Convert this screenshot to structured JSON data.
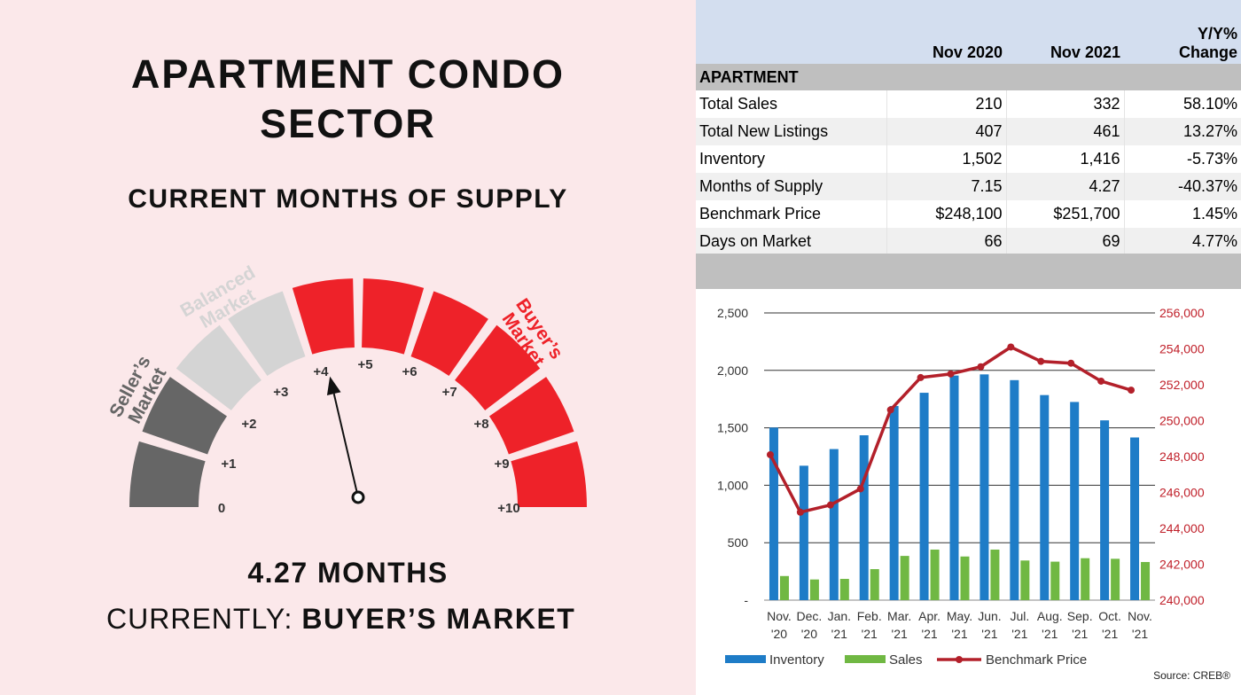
{
  "left_panel": {
    "title_line1": "APARTMENT CONDO",
    "title_line2": "SECTOR",
    "subtitle": "CURRENT MONTHS OF SUPPLY",
    "months_text": "4.27 MONTHS",
    "currently_label": "CURRENTLY:",
    "currently_value": "BUYER’S MARKET",
    "gauge": {
      "value": 4.27,
      "max": 10,
      "ticks": [
        "0",
        "+1",
        "+2",
        "+3",
        "+4",
        "+5",
        "+6",
        "+7",
        "+8",
        "+9",
        "+10"
      ],
      "zones": [
        {
          "label_line1": "Seller’s",
          "label_line2": "Market",
          "color": "#666666",
          "from": 0,
          "to": 2
        },
        {
          "label_line1": "Balanced",
          "label_line2": "Market",
          "color": "#d4d4d4",
          "from": 2,
          "to": 4
        },
        {
          "label_line1": "Buyer’s",
          "label_line2": "Market",
          "color": "#ee2229",
          "from": 4,
          "to": 10
        }
      ]
    }
  },
  "table": {
    "headers": [
      "",
      "Nov 2020",
      "Nov 2021",
      "Y/Y%",
      "Change"
    ],
    "section": "APARTMENT",
    "rows": [
      {
        "label": "Total Sales",
        "nov2020": "210",
        "nov2021": "332",
        "change": "58.10%"
      },
      {
        "label": "Total New Listings",
        "nov2020": "407",
        "nov2021": "461",
        "change": "13.27%"
      },
      {
        "label": "Inventory",
        "nov2020": "1,502",
        "nov2021": "1,416",
        "change": "-5.73%"
      },
      {
        "label": "Months of Supply",
        "nov2020": "7.15",
        "nov2021": "4.27",
        "change": "-40.37%"
      },
      {
        "label": "Benchmark Price",
        "nov2020": "$248,100",
        "nov2021": "$251,700",
        "change": "1.45%"
      },
      {
        "label": "Days on Market",
        "nov2020": "66",
        "nov2021": "69",
        "change": "4.77%"
      }
    ]
  },
  "chart_data": {
    "type": "bar",
    "categories": [
      [
        "Nov.",
        "'20"
      ],
      [
        "Dec.",
        "'20"
      ],
      [
        "Jan.",
        "'21"
      ],
      [
        "Feb.",
        "'21"
      ],
      [
        "Mar.",
        "'21"
      ],
      [
        "Apr.",
        "'21"
      ],
      [
        "May.",
        "'21"
      ],
      [
        "Jun.",
        "'21"
      ],
      [
        "Jul.",
        "'21"
      ],
      [
        "Aug.",
        "'21"
      ],
      [
        "Sep.",
        "'21"
      ],
      [
        "Oct.",
        "'21"
      ],
      [
        "Nov.",
        "'21"
      ]
    ],
    "series": [
      {
        "name": "Inventory",
        "type": "bar",
        "axis": "left",
        "color": "#1e7cc7",
        "values": [
          1502,
          1170,
          1315,
          1435,
          1690,
          1805,
          1955,
          1965,
          1915,
          1785,
          1725,
          1565,
          1416
        ]
      },
      {
        "name": "Sales",
        "type": "bar",
        "axis": "left",
        "color": "#70b843",
        "values": [
          210,
          180,
          185,
          270,
          385,
          440,
          380,
          440,
          345,
          335,
          365,
          360,
          332
        ]
      },
      {
        "name": "Benchmark Price",
        "type": "line",
        "axis": "right",
        "color": "#b3202a",
        "values": [
          248100,
          244900,
          245300,
          246200,
          250600,
          252400,
          252600,
          253000,
          254100,
          253300,
          253200,
          252200,
          251700
        ]
      }
    ],
    "y_left": {
      "min": 0,
      "max": 2500,
      "ticks": [
        "-",
        "500",
        "1,000",
        "1,500",
        "2,000",
        "2,500"
      ]
    },
    "y_right": {
      "min": 240000,
      "max": 256000,
      "ticks": [
        "240,000",
        "242,000",
        "244,000",
        "246,000",
        "248,000",
        "250,000",
        "252,000",
        "254,000",
        "256,000"
      ]
    },
    "grid": true,
    "legend_position": "bottom-left"
  },
  "source": "Source: CREB®"
}
